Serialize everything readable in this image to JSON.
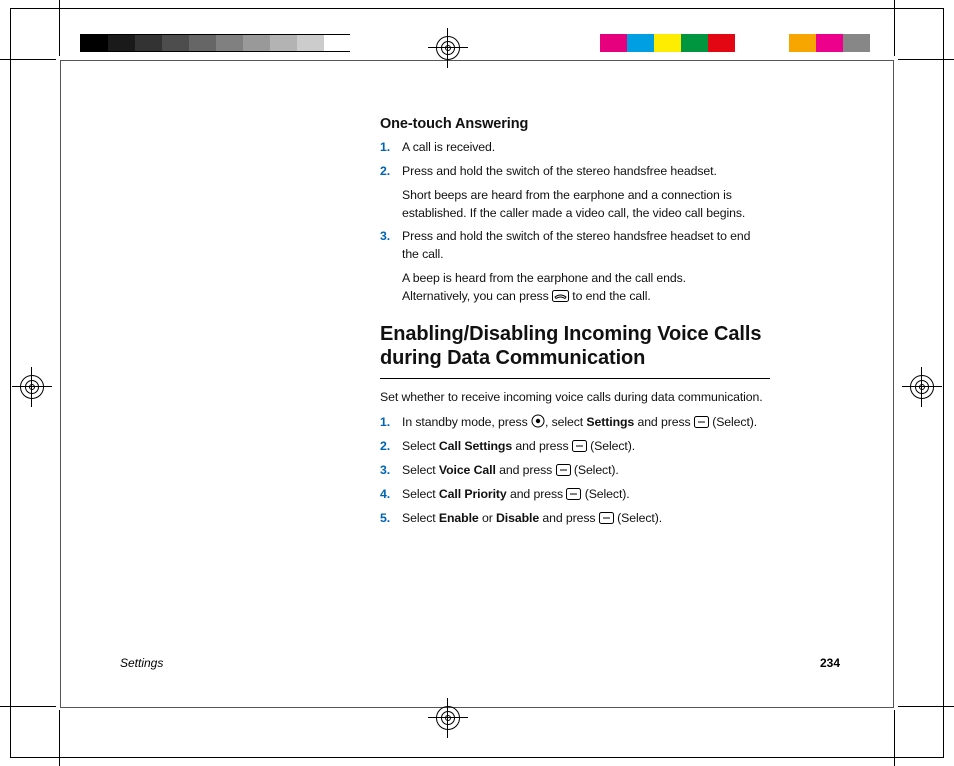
{
  "grayscale_swatches": [
    "#000000",
    "#1a1a1a",
    "#333333",
    "#4d4d4d",
    "#666666",
    "#808080",
    "#999999",
    "#b3b3b3",
    "#cccccc",
    "#ffffff"
  ],
  "color_swatches": [
    "#e6007e",
    "#009fe3",
    "#ffed00",
    "#009640",
    "#e30613",
    "#ffffff",
    "#ffffff",
    "#f7a600",
    "#ec008c",
    "#878787"
  ],
  "accent_step_color": "#0064b4",
  "one_touch": {
    "heading": "One-touch Answering",
    "steps": [
      {
        "num": "1.",
        "body": "A call is received."
      },
      {
        "num": "2.",
        "body": "Press and hold the switch of the stereo handsfree headset.",
        "sub": "Short beeps are heard from the earphone and a connection is established. If the caller made a video call, the video call begins."
      },
      {
        "num": "3.",
        "body": "Press and hold the switch of the stereo handsfree headset to end the call.",
        "sub_prefix": "A beep is heard from the earphone and the call ends.\nAlternatively, you can press ",
        "sub_suffix": " to end the call."
      }
    ]
  },
  "enable_section": {
    "title": "Enabling/Disabling Incoming Voice Calls during Data Communication",
    "intro": "Set whether to receive incoming voice calls during data communication.",
    "steps": [
      {
        "num": "1.",
        "pre": "In standby mode, press ",
        "post": ", select ",
        "bold1": "Settings",
        "post2": " and press ",
        "suffix": " (Select)."
      },
      {
        "num": "2.",
        "pre": "Select ",
        "bold1": "Call Settings",
        "post": " and press ",
        "suffix": " (Select)."
      },
      {
        "num": "3.",
        "pre": "Select ",
        "bold1": "Voice Call",
        "post": " and press ",
        "suffix": " (Select)."
      },
      {
        "num": "4.",
        "pre": "Select ",
        "bold1": "Call Priority",
        "post": " and press ",
        "suffix": " (Select)."
      },
      {
        "num": "5.",
        "pre": "Select ",
        "bold1": "Enable",
        "mid": " or ",
        "bold2": "Disable",
        "post": " and press ",
        "suffix": " (Select)."
      }
    ]
  },
  "footer": {
    "section": "Settings",
    "page": "234"
  }
}
